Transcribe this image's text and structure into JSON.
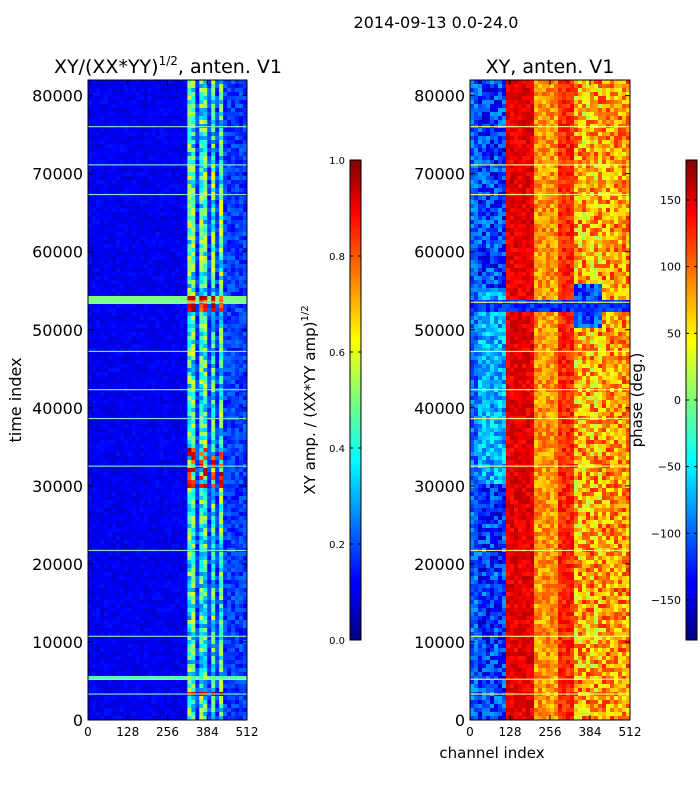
{
  "suptitle": "2014-09-13 0.0-24.0",
  "chart_data": [
    {
      "type": "heatmap",
      "title_main": "XY/(XX*YY)",
      "title_exp": "1/2",
      "title_suffix": ", anten. V1",
      "xlabel": "",
      "ylabel": "time index",
      "xlim": [
        0,
        512
      ],
      "ylim": [
        0,
        82000
      ],
      "xticks": [
        "0",
        "128",
        "256",
        "384",
        "512"
      ],
      "xtick_values": [
        0,
        128,
        256,
        384,
        512
      ],
      "yticks": [
        "0",
        "10000",
        "20000",
        "30000",
        "40000",
        "50000",
        "60000",
        "70000",
        "80000"
      ],
      "ytick_values": [
        0,
        10000,
        20000,
        30000,
        40000,
        50000,
        60000,
        70000,
        80000
      ],
      "colorbar": {
        "label_main": "XY amp. / (XX*YY amp)",
        "label_exp": "1/2",
        "min": 0.0,
        "max": 1.0,
        "ticks": [
          "0.0",
          "0.2",
          "0.4",
          "0.6",
          "0.8",
          "1.0"
        ],
        "tick_values": [
          0.0,
          0.2,
          0.4,
          0.6,
          0.8,
          1.0
        ],
        "colormap": "jet"
      }
    },
    {
      "type": "heatmap",
      "title": "XY, anten. V1",
      "xlabel": "channel index",
      "ylabel": "",
      "xlim": [
        0,
        512
      ],
      "ylim": [
        0,
        82000
      ],
      "xticks": [
        "0",
        "128",
        "256",
        "384",
        "512"
      ],
      "xtick_values": [
        0,
        128,
        256,
        384,
        512
      ],
      "yticks": [
        "0",
        "10000",
        "20000",
        "30000",
        "40000",
        "50000",
        "60000",
        "70000",
        "80000"
      ],
      "ytick_values": [
        0,
        10000,
        20000,
        30000,
        40000,
        50000,
        60000,
        70000,
        80000
      ],
      "colorbar": {
        "label": "phase (deg.)",
        "min": -180,
        "max": 180,
        "ticks": [
          "−150",
          "−100",
          "−50",
          "0",
          "50",
          "100",
          "150"
        ],
        "tick_values": [
          -150,
          -100,
          -50,
          0,
          50,
          100,
          150
        ],
        "colormap": "jet"
      }
    }
  ]
}
